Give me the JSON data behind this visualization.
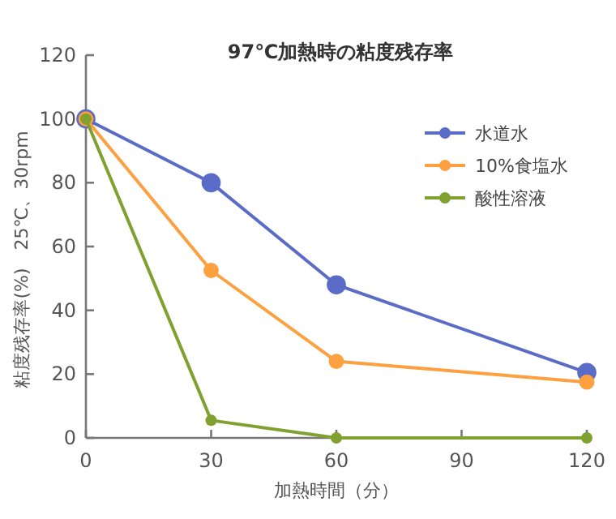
{
  "chart_data": {
    "type": "line",
    "title": "97℃加熱時の粘度残存率",
    "xlabel": "加熱時間（分）",
    "ylabel": "粘度残存率(%)　25℃、30rpm",
    "x": [
      0,
      30,
      60,
      120
    ],
    "series": [
      {
        "name": "水道水",
        "color": "#5a6bc8",
        "values": [
          100,
          80,
          48,
          20.5
        ]
      },
      {
        "name": "10%食塩水",
        "color": "#fca040",
        "values": [
          100,
          52.5,
          24,
          17.5
        ]
      },
      {
        "name": "酸性溶液",
        "color": "#80a030",
        "values": [
          100,
          5.5,
          0,
          0
        ]
      }
    ],
    "xlim": [
      0,
      120
    ],
    "xticks": [
      0,
      30,
      60,
      90,
      120
    ],
    "ylim": [
      0,
      120
    ],
    "yticks": [
      0,
      20,
      40,
      60,
      80,
      100,
      120
    ],
    "marker": "circle",
    "legend": "top right",
    "grid": false
  }
}
